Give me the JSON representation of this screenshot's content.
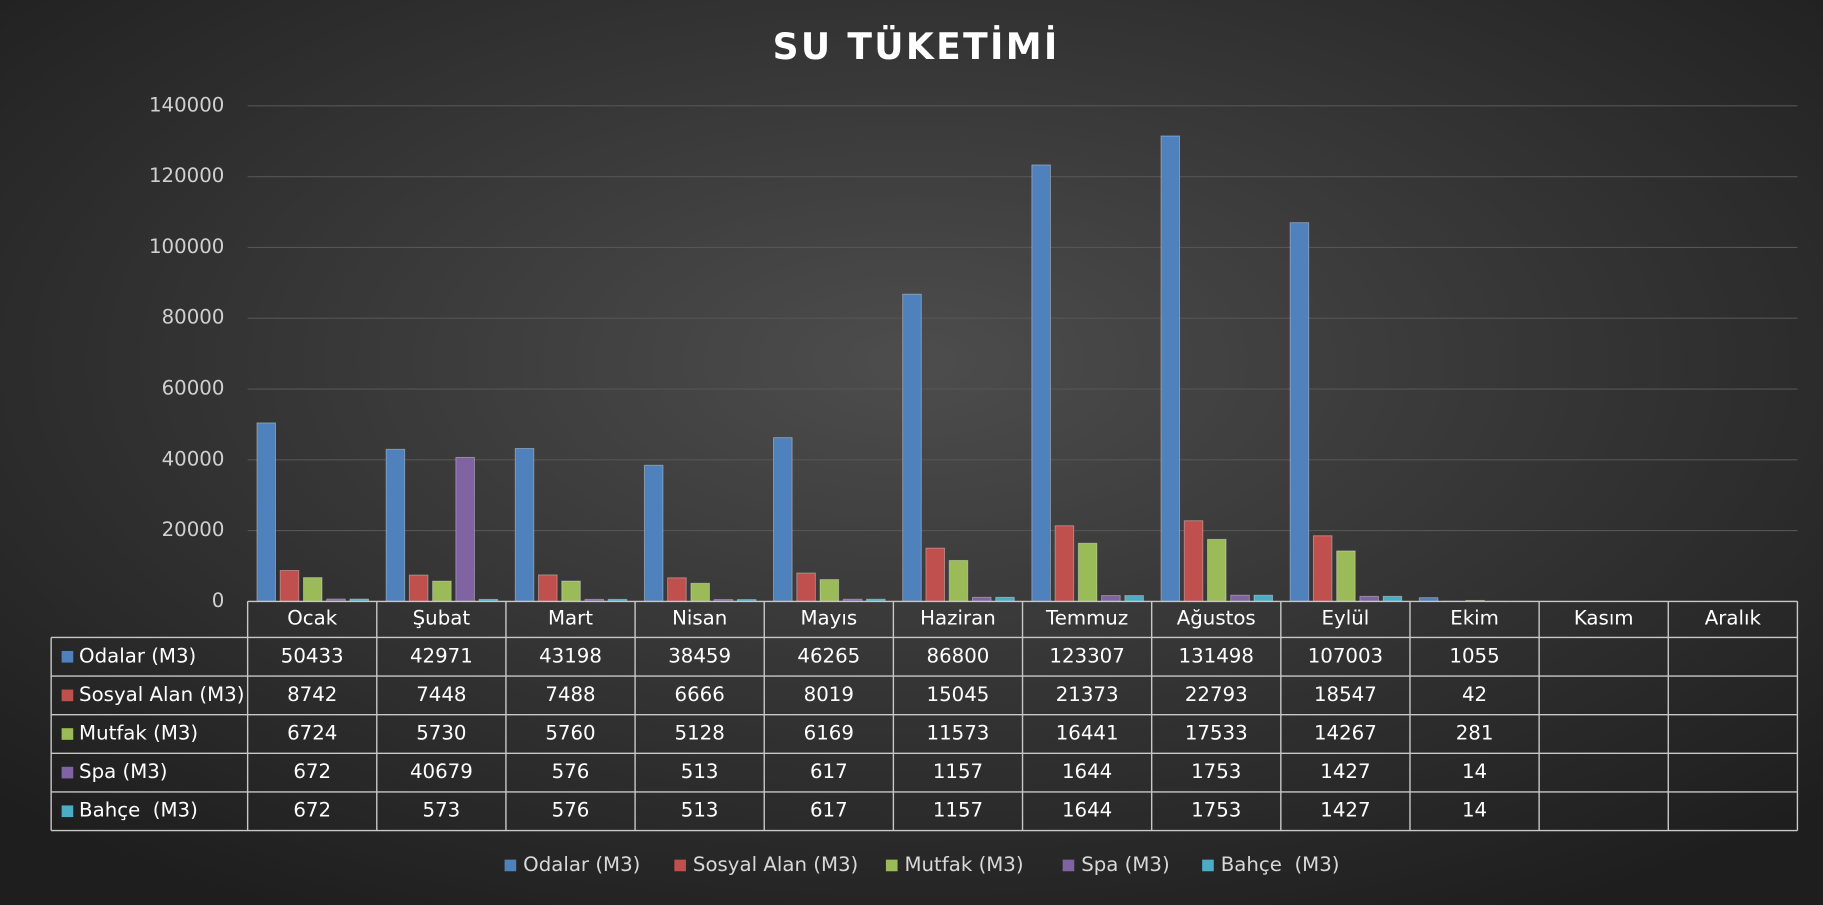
{
  "chart_data": {
    "type": "bar",
    "title": "SU TÜKETİMİ",
    "categories": [
      "Ocak",
      "Şubat",
      "Mart",
      "Nisan",
      "Mayıs",
      "Haziran",
      "Temmuz",
      "Ağustos",
      "Eylül",
      "Ekim",
      "Kasım",
      "Aralık"
    ],
    "series": [
      {
        "name": "Odalar (M3)",
        "color": "#4f81bd",
        "values": [
          50433,
          42971,
          43198,
          38459,
          46265,
          86800,
          123307,
          131498,
          107003,
          1055,
          null,
          null
        ]
      },
      {
        "name": "Sosyal Alan (M3)",
        "color": "#c0504d",
        "values": [
          8742,
          7448,
          7488,
          6666,
          8019,
          15045,
          21373,
          22793,
          18547,
          42,
          null,
          null
        ]
      },
      {
        "name": "Mutfak (M3)",
        "color": "#9bbb59",
        "values": [
          6724,
          5730,
          5760,
          5128,
          6169,
          11573,
          16441,
          17533,
          14267,
          281,
          null,
          null
        ]
      },
      {
        "name": "Spa (M3)",
        "color": "#8064a2",
        "values": [
          672,
          40679,
          576,
          513,
          617,
          1157,
          1644,
          1753,
          1427,
          14,
          null,
          null
        ]
      },
      {
        "name": "Bahçe  (M3)",
        "color": "#4bacc6",
        "values": [
          672,
          573,
          576,
          513,
          617,
          1157,
          1644,
          1753,
          1427,
          14,
          null,
          null
        ]
      }
    ],
    "ylim": [
      0,
      140000
    ],
    "yticks": [
      0,
      20000,
      40000,
      60000,
      80000,
      100000,
      120000,
      140000
    ],
    "grid": true
  }
}
